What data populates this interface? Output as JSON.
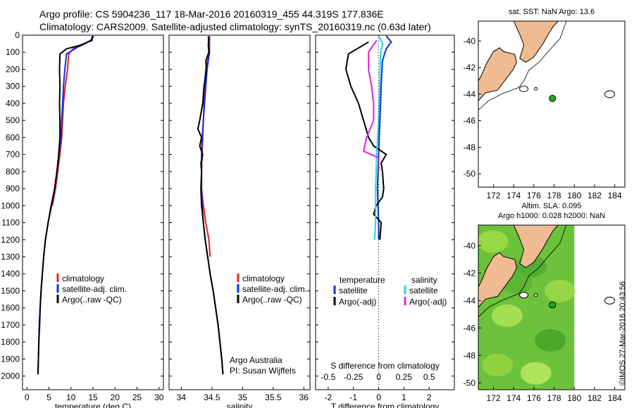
{
  "header": {
    "line1": "Argo profile: CS 5904236_117 18-Mar-2016 20160319_455 44.319S 177.836E",
    "line2": "Climatology: CARS2009. Satellite-adjusted climatology: synTS_20160319.nc (0.63d later)"
  },
  "credit": "©IMOS 27-Mar-2016 20:43:56",
  "colors": {
    "climatology": "#e02020",
    "satellite": "#1030e0",
    "argo": "#000000",
    "sal_satellite": "#20d8e0",
    "sal_argo": "#e020e0",
    "land": "#f0bb90",
    "float": "#22aa22"
  },
  "chart_data": [
    {
      "id": "temperature",
      "type": "line",
      "xlabel": "temperature (deg C)",
      "ylabel": "",
      "xlim": [
        -1,
        31
      ],
      "ylim": [
        0,
        2080
      ],
      "y_reversed": true,
      "xticks": [
        0,
        5,
        10,
        15,
        20,
        25,
        30
      ],
      "yticks": [
        0,
        100,
        200,
        300,
        400,
        500,
        600,
        700,
        800,
        900,
        1000,
        1100,
        1200,
        1300,
        1400,
        1500,
        1600,
        1700,
        1800,
        1900,
        2000
      ],
      "legend": [
        "climatology",
        "satellite-adj. clim.",
        "Argo(..raw -QC)"
      ],
      "series": [
        {
          "name": "climatology",
          "points": [
            [
              15.2,
              5
            ],
            [
              14.5,
              30
            ],
            [
              12.5,
              60
            ],
            [
              10.5,
              80
            ],
            [
              9.5,
              110
            ],
            [
              9.2,
              200
            ],
            [
              8.7,
              300
            ],
            [
              8.3,
              400
            ],
            [
              8.1,
              500
            ],
            [
              7.9,
              600
            ],
            [
              7.5,
              700
            ],
            [
              7,
              800
            ],
            [
              6.5,
              900
            ],
            [
              5.8,
              1000
            ]
          ]
        },
        {
          "name": "satellite-adj. clim.",
          "points": [
            [
              15,
              5
            ],
            [
              14.5,
              30
            ],
            [
              11.5,
              70
            ],
            [
              9,
              110
            ],
            [
              8.6,
              200
            ],
            [
              8.3,
              300
            ],
            [
              8.1,
              400
            ],
            [
              7.9,
              500
            ],
            [
              7.7,
              600
            ],
            [
              7.3,
              700
            ],
            [
              6.8,
              800
            ],
            [
              6.3,
              900
            ],
            [
              5.6,
              1000
            ],
            [
              4.8,
              1100
            ],
            [
              4.2,
              1200
            ],
            [
              3.8,
              1300
            ],
            [
              3.5,
              1400
            ],
            [
              3.2,
              1500
            ],
            [
              3,
              1600
            ],
            [
              2.9,
              1700
            ],
            [
              2.7,
              1800
            ],
            [
              2.6,
              1900
            ],
            [
              2.5,
              1990
            ]
          ]
        },
        {
          "name": "Argo(..raw -QC)",
          "points": [
            [
              14.8,
              5
            ],
            [
              14.8,
              30
            ],
            [
              12,
              60
            ],
            [
              9,
              80
            ],
            [
              7.5,
              110
            ],
            [
              7.4,
              200
            ],
            [
              7.5,
              300
            ],
            [
              7.4,
              400
            ],
            [
              7.5,
              500
            ],
            [
              7.5,
              600
            ],
            [
              7.2,
              700
            ],
            [
              6.8,
              800
            ],
            [
              6.3,
              900
            ],
            [
              5.5,
              1000
            ],
            [
              4.8,
              1100
            ],
            [
              4.2,
              1200
            ],
            [
              3.8,
              1300
            ],
            [
              3.5,
              1400
            ],
            [
              3.2,
              1500
            ],
            [
              3,
              1600
            ],
            [
              2.8,
              1700
            ],
            [
              2.7,
              1800
            ],
            [
              2.6,
              1900
            ],
            [
              2.5,
              1990
            ]
          ]
        }
      ]
    },
    {
      "id": "salinity",
      "type": "line",
      "xlabel": "salinity",
      "ylabel": "",
      "xlim": [
        33.8,
        36.1
      ],
      "ylim": [
        0,
        2080
      ],
      "y_reversed": true,
      "xticks": [
        34,
        34.5,
        35,
        35.5,
        36
      ],
      "legend": [
        "climatology",
        "satellite-adj. clim.",
        "Argo(..raw -QC)"
      ],
      "annotation": [
        "Argo Australia",
        "PI: Susan Wijffels"
      ],
      "series": [
        {
          "name": "climatology",
          "points": [
            [
              34.46,
              5
            ],
            [
              34.46,
              100
            ],
            [
              34.4,
              200
            ],
            [
              34.38,
              300
            ],
            [
              34.37,
              400
            ],
            [
              34.36,
              500
            ],
            [
              34.35,
              600
            ],
            [
              34.34,
              700
            ],
            [
              34.33,
              800
            ],
            [
              34.33,
              900
            ],
            [
              34.36,
              1000
            ],
            [
              34.4,
              1100
            ],
            [
              34.45,
              1200
            ],
            [
              34.47,
              1300
            ]
          ]
        },
        {
          "name": "satellite-adj. clim.",
          "points": [
            [
              34.44,
              5
            ],
            [
              34.46,
              100
            ],
            [
              34.42,
              200
            ],
            [
              34.4,
              300
            ],
            [
              34.38,
              400
            ],
            [
              34.36,
              500
            ],
            [
              34.34,
              600
            ],
            [
              34.33,
              700
            ],
            [
              34.33,
              800
            ],
            [
              34.33,
              900
            ],
            [
              34.34,
              1000
            ],
            [
              34.36,
              1100
            ],
            [
              34.39,
              1200
            ],
            [
              34.43,
              1300
            ],
            [
              34.47,
              1400
            ],
            [
              34.52,
              1500
            ],
            [
              34.56,
              1600
            ],
            [
              34.6,
              1700
            ],
            [
              34.63,
              1800
            ],
            [
              34.66,
              1900
            ],
            [
              34.68,
              1990
            ]
          ]
        },
        {
          "name": "Argo(..raw -QC)",
          "points": [
            [
              34.45,
              10
            ],
            [
              34.44,
              60
            ],
            [
              34.45,
              100
            ],
            [
              34.4,
              150
            ],
            [
              34.41,
              200
            ],
            [
              34.37,
              300
            ],
            [
              34.35,
              400
            ],
            [
              34.3,
              500
            ],
            [
              34.27,
              550
            ],
            [
              34.33,
              600
            ],
            [
              34.3,
              650
            ],
            [
              34.35,
              700
            ],
            [
              34.32,
              750
            ],
            [
              34.33,
              800
            ],
            [
              34.32,
              900
            ],
            [
              34.33,
              1000
            ],
            [
              34.36,
              1100
            ],
            [
              34.39,
              1200
            ],
            [
              34.43,
              1300
            ],
            [
              34.47,
              1400
            ],
            [
              34.52,
              1500
            ],
            [
              34.56,
              1600
            ],
            [
              34.6,
              1700
            ],
            [
              34.63,
              1800
            ],
            [
              34.66,
              1900
            ],
            [
              34.68,
              1990
            ]
          ]
        }
      ]
    },
    {
      "id": "difference",
      "type": "line",
      "xlabel": "T difference from climatology",
      "xlabel2": "S difference from climatology",
      "xlim": [
        -2.5,
        3
      ],
      "ylim": [
        0,
        2080
      ],
      "y_reversed": true,
      "xticks": [
        -2,
        -1,
        0,
        1,
        2
      ],
      "xticks2_values": [
        -0.5,
        -0.25,
        0,
        0.25,
        0.5
      ],
      "xticks2_labels": [
        "-0.5",
        "-0.25",
        "0",
        "0.25",
        "0.5"
      ],
      "legend_headers": [
        "temperature",
        "salinity"
      ],
      "legend": [
        "satellite",
        "Argo(-adj)",
        "satellite",
        "Argo(-adj)"
      ],
      "series": [
        {
          "name": "satellite",
          "var": "T",
          "points": [
            [
              0.3,
              5
            ],
            [
              0.5,
              40
            ],
            [
              0.3,
              80
            ],
            [
              0.15,
              150
            ],
            [
              0.1,
              300
            ],
            [
              0.05,
              500
            ],
            [
              0,
              700
            ],
            [
              -0.05,
              900
            ],
            [
              0,
              1100
            ],
            [
              0,
              1200
            ]
          ]
        },
        {
          "name": "Argo(-adj)",
          "var": "T",
          "points": [
            [
              -0.4,
              40
            ],
            [
              -1.2,
              110
            ],
            [
              -1.3,
              200
            ],
            [
              -1.1,
              300
            ],
            [
              -0.8,
              400
            ],
            [
              -0.6,
              500
            ],
            [
              -0.4,
              600
            ],
            [
              -0.2,
              650
            ],
            [
              0.3,
              700
            ],
            [
              0.1,
              750
            ],
            [
              0.15,
              800
            ],
            [
              0.2,
              900
            ],
            [
              0.15,
              950
            ],
            [
              -0.1,
              1000
            ],
            [
              -0.2,
              1050
            ],
            [
              0.1,
              1100
            ],
            [
              0.05,
              1200
            ]
          ]
        },
        {
          "name": "satellite",
          "var": "S",
          "points": [
            [
              0,
              5
            ],
            [
              0.04,
              50
            ],
            [
              0.02,
              100
            ],
            [
              0.01,
              300
            ],
            [
              0,
              500
            ],
            [
              -0.02,
              700
            ],
            [
              -0.03,
              900
            ],
            [
              -0.03,
              1100
            ],
            [
              -0.04,
              1200
            ]
          ]
        },
        {
          "name": "Argo(-adj)",
          "var": "S",
          "points": [
            [
              -0.02,
              30
            ],
            [
              -0.1,
              100
            ],
            [
              -0.1,
              200
            ],
            [
              -0.07,
              300
            ],
            [
              -0.05,
              400
            ],
            [
              -0.05,
              500
            ],
            [
              -0.12,
              600
            ],
            [
              -0.15,
              680
            ],
            [
              0,
              720
            ],
            [
              0,
              800
            ]
          ]
        }
      ]
    },
    {
      "id": "map_sst",
      "type": "map",
      "title": "sat. SST: NaN Argo: 13.6",
      "xlim": [
        170.5,
        185
      ],
      "ylim": [
        -51,
        -38.5
      ],
      "xticks": [
        172,
        174,
        176,
        178,
        180,
        182,
        184
      ],
      "yticks": [
        -40,
        -42,
        -44,
        -46,
        -48,
        -50
      ],
      "float_position": [
        177.836,
        -44.319
      ]
    },
    {
      "id": "map_sla",
      "type": "map",
      "title": "Altim. SLA: 0.095",
      "subtitle": "Argo h1000: 0.028 h2000: NaN",
      "xlim": [
        170.5,
        185
      ],
      "ylim": [
        -50.5,
        -38.5
      ],
      "xticks": [
        172,
        174,
        176,
        178,
        180,
        182,
        184
      ],
      "yticks": [
        -40,
        -42,
        -44,
        -46,
        -48,
        -50
      ],
      "data_extent_lon": [
        170.5,
        180
      ],
      "float_position": [
        177.836,
        -44.319
      ]
    }
  ]
}
